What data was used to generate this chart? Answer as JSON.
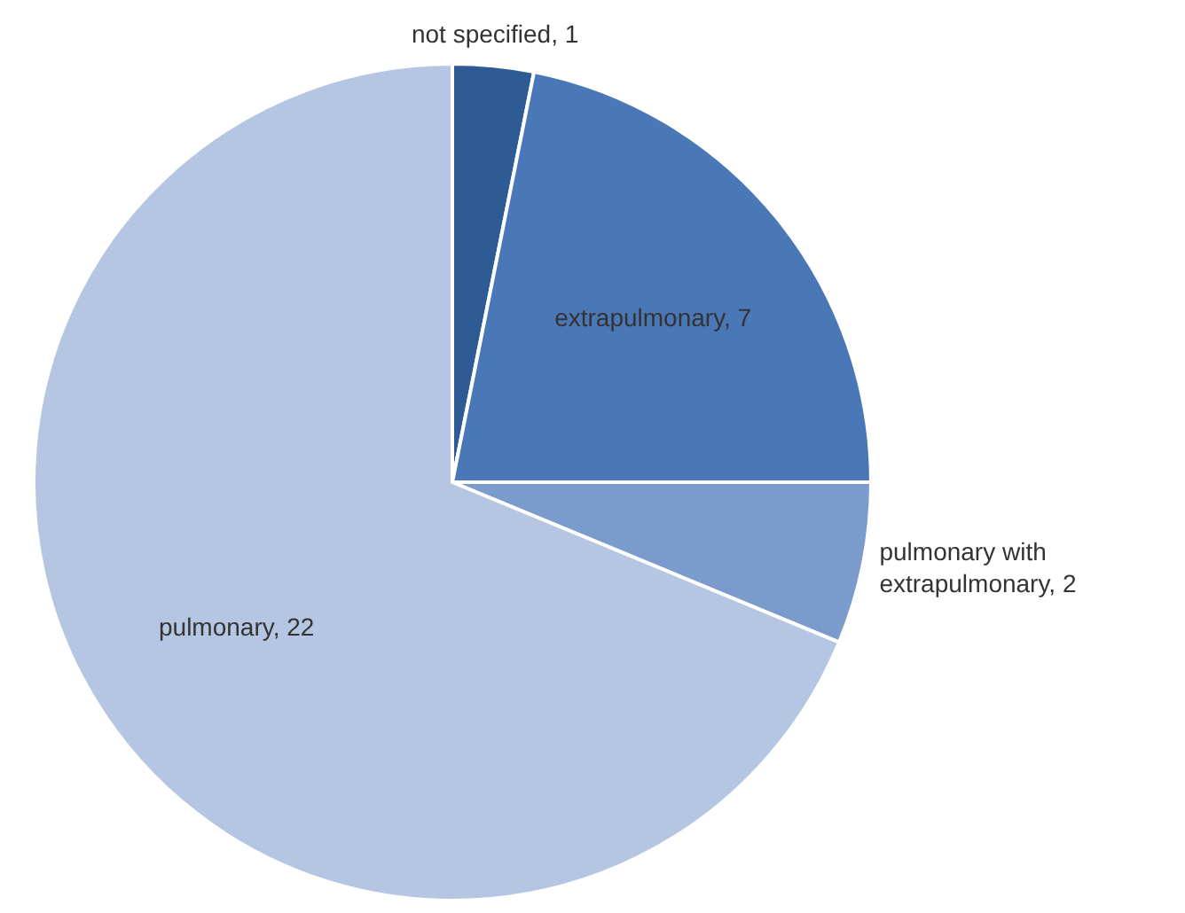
{
  "chart_data": {
    "type": "pie",
    "categories": [
      "not specified",
      "extrapulmonary",
      "pulmonary with extrapulmonary",
      "pulmonary"
    ],
    "values": [
      1,
      7,
      2,
      22
    ],
    "colors": [
      "#2f5b95",
      "#4a78b6",
      "#7b9bcd",
      "#b5c6e2"
    ],
    "value_labels": [
      ", 1",
      ", 7",
      ", 2",
      ", 22"
    ]
  }
}
